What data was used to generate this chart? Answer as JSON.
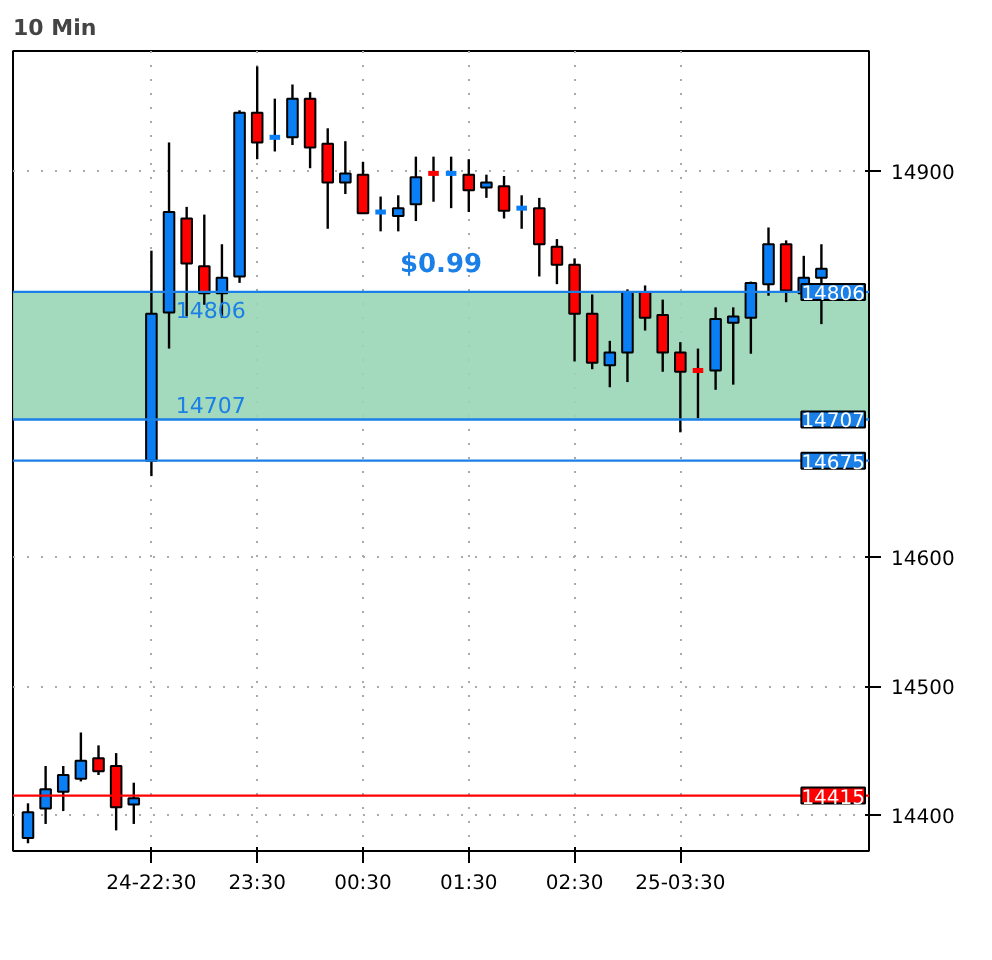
{
  "chart_data": {
    "type": "candlestick",
    "title": "10 Min",
    "categories": [
      null,
      null,
      null,
      null,
      null,
      null,
      null,
      "24-22:30",
      null,
      null,
      null,
      null,
      null,
      "23:30",
      null,
      null,
      null,
      null,
      null,
      "00:30",
      null,
      null,
      null,
      null,
      null,
      "01:30",
      null,
      null,
      null,
      null,
      null,
      "02:30",
      null,
      null,
      null,
      null,
      null,
      "25-03:30",
      null,
      null,
      null,
      null,
      null,
      null,
      null,
      null
    ],
    "ohlc": [
      [
        14382,
        14409,
        14378,
        14402
      ],
      [
        14405,
        14438,
        14393,
        14420
      ],
      [
        14418,
        14438,
        14403,
        14431
      ],
      [
        14428,
        14464,
        14426,
        14442
      ],
      [
        14444,
        14454,
        14431,
        14434
      ],
      [
        14438,
        14448,
        14388,
        14406
      ],
      [
        14408,
        14425,
        14393,
        14413
      ],
      [
        14675,
        14838,
        14663,
        14789
      ],
      [
        14790,
        14922,
        14762,
        14868
      ],
      [
        14863,
        14872,
        14787,
        14828
      ],
      [
        14826,
        14866,
        14796,
        14805
      ],
      [
        14805,
        14843,
        14786,
        14817
      ],
      [
        14818,
        14947,
        14813,
        14945
      ],
      [
        14945,
        14981,
        14909,
        14922
      ],
      [
        14926,
        14956,
        14915,
        14926
      ],
      [
        14926,
        14967,
        14920,
        14956
      ],
      [
        14956,
        14961,
        14902,
        14918
      ],
      [
        14921,
        14933,
        14855,
        14891
      ],
      [
        14891,
        14923,
        14882,
        14898
      ],
      [
        14897,
        14907,
        14867,
        14867
      ],
      [
        14868,
        14880,
        14853,
        14868
      ],
      [
        14865,
        14881,
        14853,
        14871
      ],
      [
        14874,
        14911,
        14861,
        14895
      ],
      [
        14898,
        14911,
        14876,
        14898
      ],
      [
        14898,
        14911,
        14871,
        14898
      ],
      [
        14897,
        14909,
        14868,
        14885
      ],
      [
        14887,
        14897,
        14879,
        14891
      ],
      [
        14888,
        14896,
        14863,
        14869
      ],
      [
        14871,
        14881,
        14855,
        14871
      ],
      [
        14871,
        14879,
        14818,
        14843
      ],
      [
        14841,
        14847,
        14812,
        14827
      ],
      [
        14827,
        14832,
        14752,
        14789
      ],
      [
        14789,
        14804,
        14746,
        14751
      ],
      [
        14749,
        14768,
        14732,
        14759
      ],
      [
        14759,
        14808,
        14736,
        14806
      ],
      [
        14806,
        14811,
        14776,
        14786
      ],
      [
        14788,
        14800,
        14744,
        14759
      ],
      [
        14759,
        14767,
        14697,
        14744
      ],
      [
        14745,
        14762,
        14708,
        14745
      ],
      [
        14745,
        14794,
        14730,
        14785
      ],
      [
        14782,
        14794,
        14734,
        14787
      ],
      [
        14786,
        14814,
        14758,
        14813
      ],
      [
        14812,
        14856,
        14803,
        14843
      ],
      [
        14843,
        14846,
        14798,
        14807
      ],
      [
        14805,
        14834,
        14805,
        14817
      ],
      [
        14817,
        14843,
        14781,
        14824
      ]
    ],
    "colors": [
      "#0a7ff5",
      "#0a7ff5",
      "#0a7ff5",
      "#0a7ff5",
      "#ff0000",
      "#ff0000",
      "#0a7ff5",
      "#0a7ff5",
      "#0a7ff5",
      "#ff0000",
      "#ff0000",
      "#0a7ff5",
      "#0a7ff5",
      "#ff0000",
      "#0a7ff5",
      "#0a7ff5",
      "#ff0000",
      "#ff0000",
      "#0a7ff5",
      "#ff0000",
      "#0a7ff5",
      "#0a7ff5",
      "#0a7ff5",
      "#ff0000",
      "#0a7ff5",
      "#ff0000",
      "#0a7ff5",
      "#ff0000",
      "#0a7ff5",
      "#ff0000",
      "#ff0000",
      "#ff0000",
      "#ff0000",
      "#0a7ff5",
      "#0a7ff5",
      "#ff0000",
      "#ff0000",
      "#ff0000",
      "#ff0000",
      "#0a7ff5",
      "#0a7ff5",
      "#0a7ff5",
      "#0a7ff5",
      "#ff0000",
      "#0a7ff5",
      "#0a7ff5"
    ],
    "ylim": [
      14372,
      14993
    ],
    "yticks": [
      14400,
      14500,
      14600,
      14900
    ],
    "ref_lines": [
      {
        "axis": "y",
        "value": 14806,
        "label": "14806",
        "color": "#1a7fe6"
      },
      {
        "axis": "y",
        "value": 14707,
        "label": "14707",
        "color": "#1a7fe6"
      },
      {
        "axis": "y",
        "value": 14675,
        "label": "14675",
        "color": "#1a7fe6"
      },
      {
        "axis": "y",
        "value": 14415,
        "label": "14415",
        "color": "#ff0000"
      }
    ],
    "bands": [
      {
        "axis": "y",
        "from": 14707,
        "to": 14806,
        "label": "$0.99",
        "color": "#99d5b5"
      }
    ],
    "annotations": [
      {
        "text": "14806",
        "y": 14806
      },
      {
        "text": "14707",
        "y": 14707
      }
    ],
    "grid": true
  }
}
